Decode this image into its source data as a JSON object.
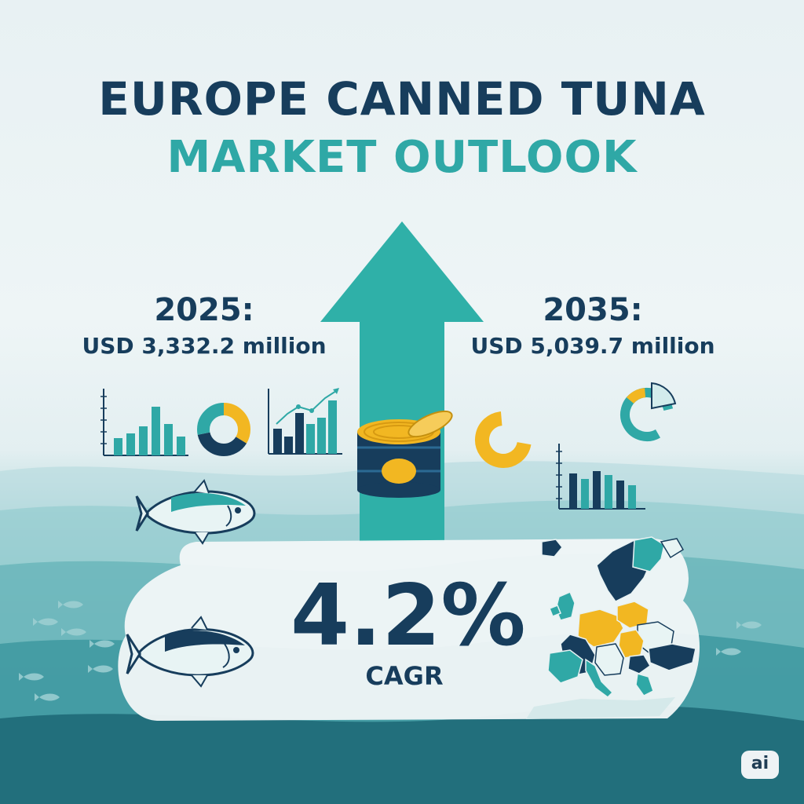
{
  "title": {
    "line1": "EUROPE CANNED TUNA",
    "line2": "MARKET OUTLOOK"
  },
  "left_stat": {
    "year": "2025:",
    "value": "USD 3,332.2 million"
  },
  "right_stat": {
    "year": "2035:",
    "value": "USD 5,039.7 million"
  },
  "cagr": {
    "value": "4.2%",
    "label": "CAGR"
  },
  "badge": "ai",
  "colors": {
    "navy": "#173d5c",
    "teal": "#2fa8a6",
    "yellow": "#f2b722",
    "ocean_deep": "#17606f"
  },
  "icons": [
    "bar-chart-icon",
    "donut-chart-icon",
    "trend-chart-icon",
    "tuna-fish-icon",
    "tuna-can-icon",
    "europe-map-icon",
    "up-arrow-icon"
  ]
}
